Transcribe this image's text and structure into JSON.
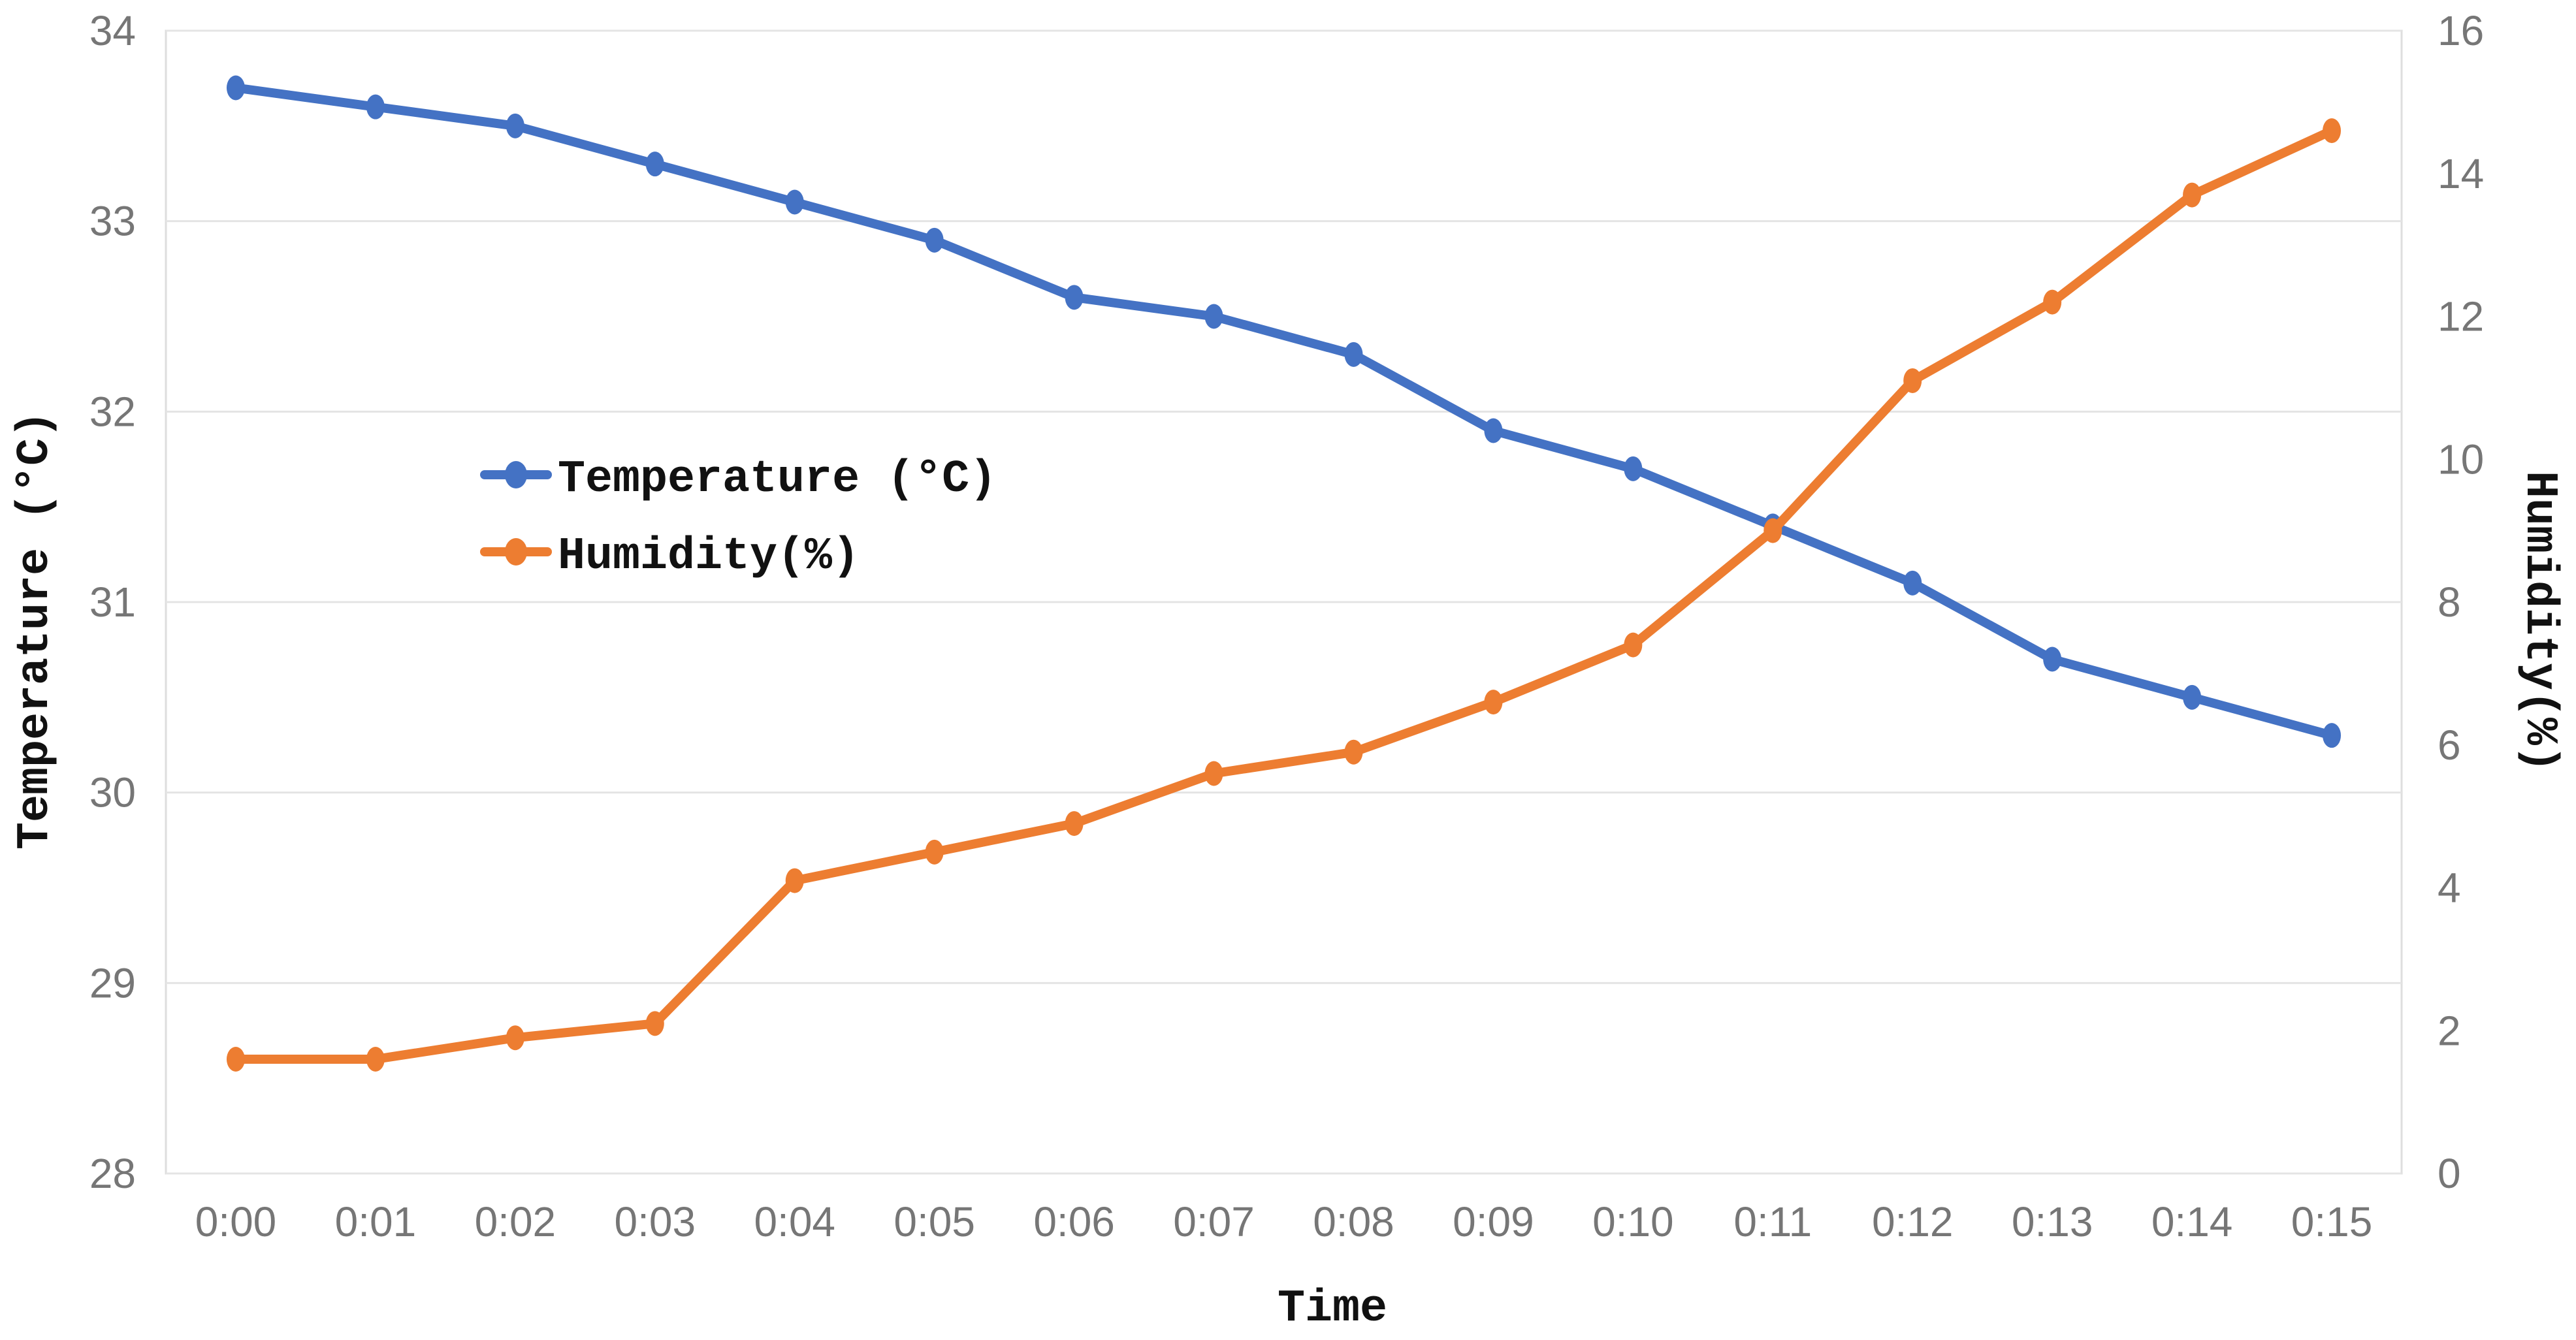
{
  "chart_data": {
    "type": "line",
    "title": "",
    "xlabel": "Time",
    "x": [
      "0:00",
      "0:01",
      "0:02",
      "0:03",
      "0:04",
      "0:05",
      "0:06",
      "0:07",
      "0:08",
      "0:09",
      "0:10",
      "0:11",
      "0:12",
      "0:13",
      "0:14",
      "0:15"
    ],
    "series": [
      {
        "name": "Temperature (°C)",
        "axis": "left",
        "color": "#4472C4",
        "values": [
          33.7,
          33.6,
          33.5,
          33.3,
          33.1,
          32.9,
          32.6,
          32.5,
          32.3,
          31.9,
          31.7,
          31.4,
          31.1,
          30.7,
          30.5,
          30.3
        ]
      },
      {
        "name": "Humidity(%)",
        "axis": "right",
        "color": "#ED7D31",
        "values": [
          1.6,
          1.6,
          1.9,
          2.1,
          4.1,
          4.5,
          4.9,
          5.6,
          5.9,
          6.6,
          7.4,
          9.0,
          11.1,
          12.2,
          13.7,
          14.6
        ]
      }
    ],
    "left_axis": {
      "label": "Temperature (°C)",
      "min": 28,
      "max": 34,
      "ticks": [
        34,
        33,
        32,
        31,
        30,
        29,
        28
      ]
    },
    "right_axis": {
      "label": "Humidity(%)",
      "min": 0,
      "max": 16,
      "ticks": [
        16,
        14,
        12,
        10,
        8,
        6,
        4,
        2,
        0
      ]
    },
    "legend": {
      "position": "inside-left",
      "items": [
        "Temperature (°C)",
        "Humidity(%)"
      ]
    },
    "grid": true,
    "colors": {
      "grid": "#E4E4E4",
      "plot_border": "#DEDEDE",
      "tick_text": "#767676",
      "title_text": "#111111",
      "background": "#FFFFFF",
      "temperature": "#4472C4",
      "humidity": "#ED7D31"
    }
  }
}
